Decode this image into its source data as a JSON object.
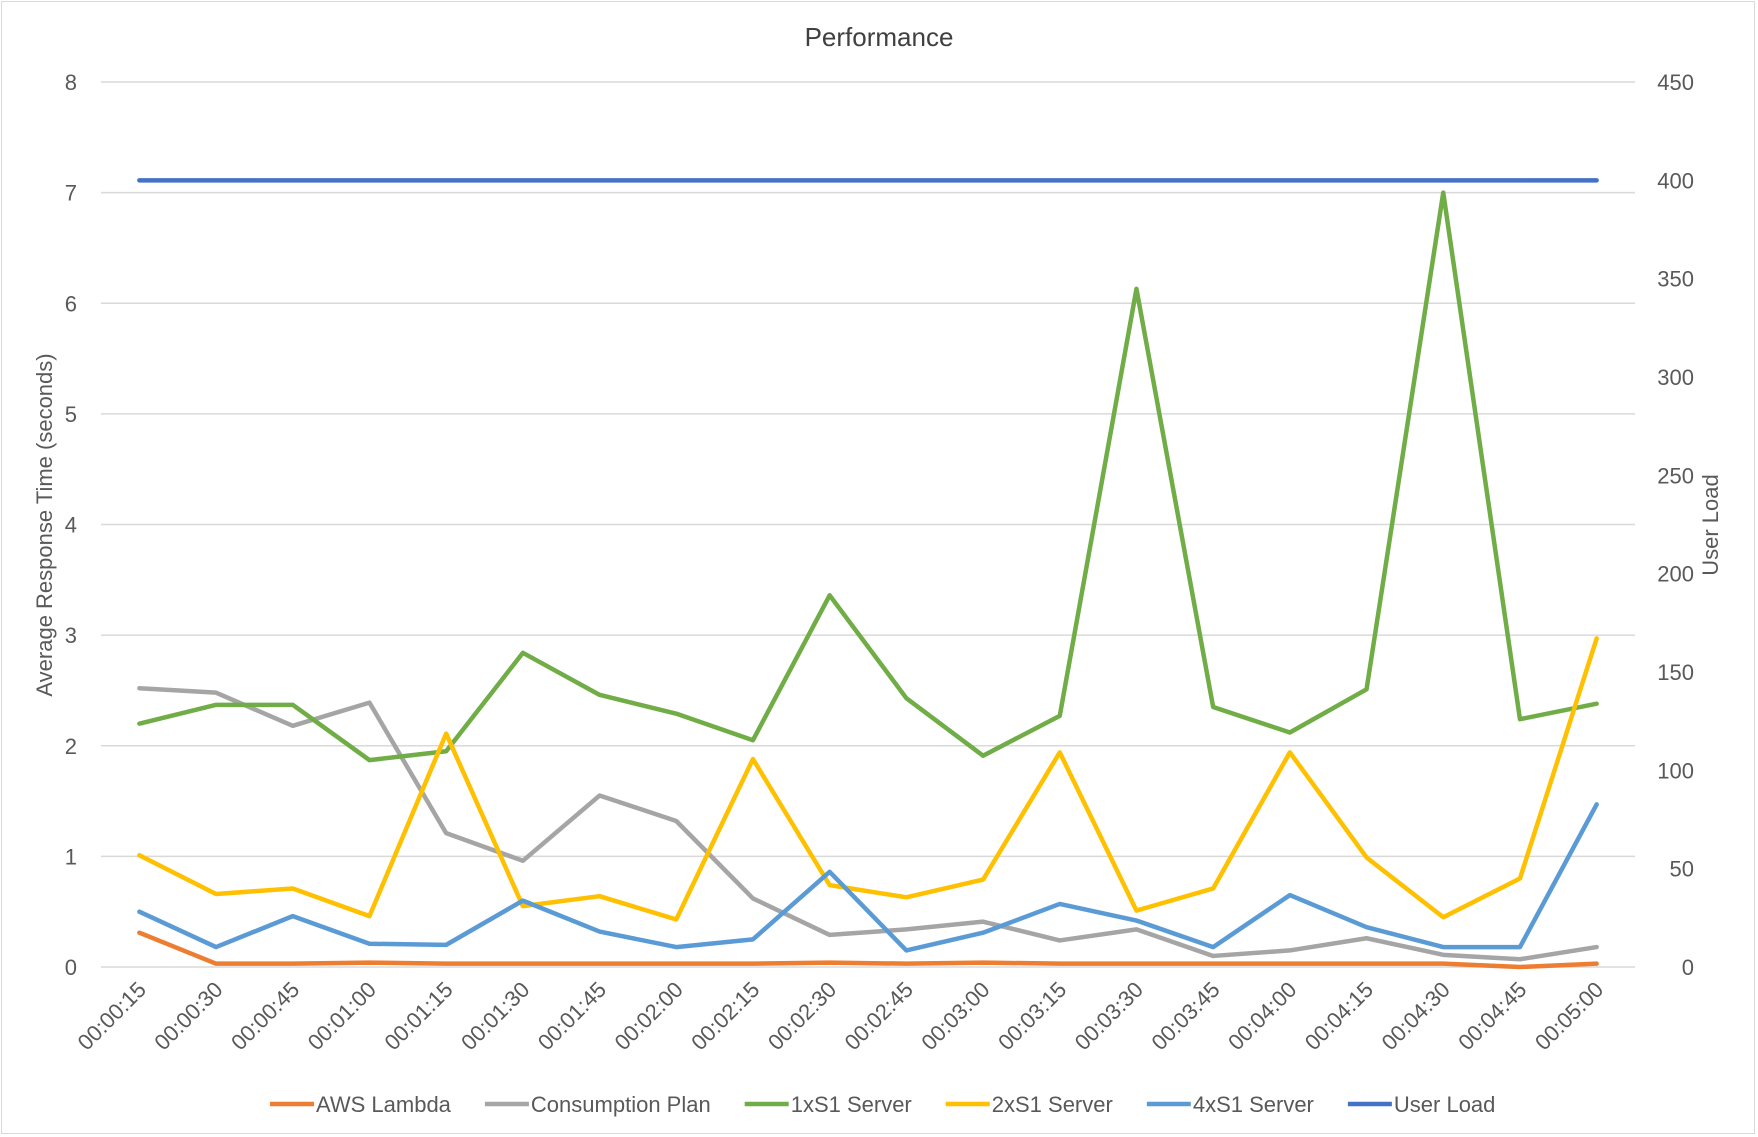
{
  "chart_data": {
    "type": "line",
    "title": "Performance",
    "xlabel": "",
    "ylabel": "Average Response Time (seconds)",
    "y2label": "User Load",
    "ylim": [
      0,
      8
    ],
    "y2lim": [
      0,
      450
    ],
    "yticks": [
      "0",
      "1",
      "2",
      "3",
      "4",
      "5",
      "6",
      "7",
      "8"
    ],
    "y2ticks": [
      "0",
      "50",
      "100",
      "150",
      "200",
      "250",
      "300",
      "350",
      "400",
      "450"
    ],
    "grid": true,
    "legend_position": "bottom",
    "categories": [
      "00:00:15",
      "00:00:30",
      "00:00:45",
      "00:01:00",
      "00:01:15",
      "00:01:30",
      "00:01:45",
      "00:02:00",
      "00:02:15",
      "00:02:30",
      "00:02:45",
      "00:03:00",
      "00:03:15",
      "00:03:30",
      "00:03:45",
      "00:04:00",
      "00:04:15",
      "00:04:30",
      "00:04:45",
      "00:05:00"
    ],
    "series": [
      {
        "name": "AWS Lambda",
        "color": "#ED7D31",
        "axis": "left",
        "values": [
          0.31,
          0.03,
          0.03,
          0.04,
          0.03,
          0.03,
          0.03,
          0.03,
          0.03,
          0.04,
          0.03,
          0.04,
          0.03,
          0.03,
          0.03,
          0.03,
          0.03,
          0.03,
          0.0,
          0.03
        ]
      },
      {
        "name": "Consumption Plan",
        "color": "#A5A5A5",
        "axis": "left",
        "values": [
          2.52,
          2.48,
          2.18,
          2.39,
          1.21,
          0.96,
          1.55,
          1.32,
          0.62,
          0.29,
          0.34,
          0.41,
          0.24,
          0.34,
          0.1,
          0.15,
          0.26,
          0.11,
          0.07,
          0.18
        ]
      },
      {
        "name": "1xS1 Server",
        "color": "#70AD47",
        "axis": "left",
        "values": [
          2.2,
          2.37,
          2.37,
          1.87,
          1.95,
          2.84,
          2.46,
          2.29,
          2.05,
          3.36,
          2.43,
          1.91,
          2.27,
          6.13,
          2.35,
          2.12,
          2.51,
          7.0,
          2.24,
          2.38
        ]
      },
      {
        "name": "2xS1 Server",
        "color": "#FFC000",
        "axis": "left",
        "values": [
          1.01,
          0.66,
          0.71,
          0.46,
          2.11,
          0.55,
          0.64,
          0.43,
          1.88,
          0.74,
          0.63,
          0.79,
          1.94,
          0.51,
          0.71,
          1.94,
          0.99,
          0.45,
          0.8,
          2.97
        ]
      },
      {
        "name": "4xS1 Server",
        "color": "#5B9BD5",
        "axis": "left",
        "values": [
          0.5,
          0.18,
          0.46,
          0.21,
          0.2,
          0.6,
          0.32,
          0.18,
          0.25,
          0.86,
          0.15,
          0.31,
          0.57,
          0.42,
          0.18,
          0.65,
          0.36,
          0.18,
          0.18,
          1.47
        ]
      },
      {
        "name": "User Load",
        "color": "#4472C4",
        "axis": "right",
        "values": [
          400,
          400,
          400,
          400,
          400,
          400,
          400,
          400,
          400,
          400,
          400,
          400,
          400,
          400,
          400,
          400,
          400,
          400,
          400,
          400
        ]
      }
    ]
  }
}
